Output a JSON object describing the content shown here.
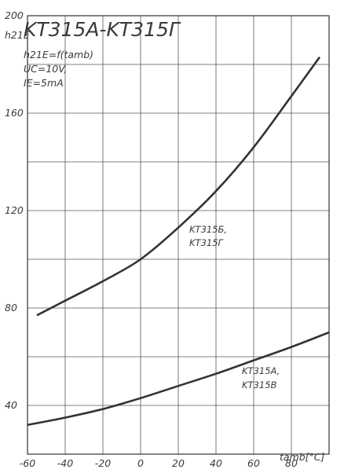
{
  "chart_data": {
    "type": "line",
    "title": "KT315A-KT315Г",
    "conditions": [
      "h21E=f(tamb)",
      "UC=10V,",
      "IE=5mA"
    ],
    "ylabel": "h21E",
    "xlabel": "tamb[°C]",
    "xlim": [
      -60,
      100
    ],
    "ylim": [
      20,
      200
    ],
    "grid": true,
    "x_ticks": [
      "-60",
      "-40",
      "-20",
      "0",
      "20",
      "40",
      "60",
      "80"
    ],
    "y_ticks": [
      "40",
      "80",
      "120",
      "160",
      "200"
    ],
    "series": [
      {
        "name": "KT315Б, KT315Г",
        "x": [
          -55,
          -40,
          -20,
          0,
          20,
          40,
          60,
          80,
          95
        ],
        "y": [
          77,
          83,
          91,
          100,
          113,
          128,
          146,
          167,
          183
        ]
      },
      {
        "name": "KT315A, KT315B",
        "x": [
          -60,
          -40,
          -20,
          0,
          20,
          40,
          60,
          80,
          100
        ],
        "y": [
          32,
          35,
          38.5,
          43,
          48,
          53,
          58.5,
          64,
          70
        ]
      }
    ]
  }
}
